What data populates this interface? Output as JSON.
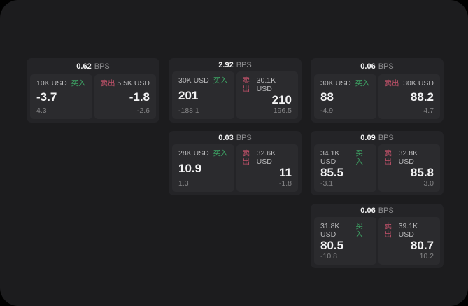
{
  "labels": {
    "bps_unit": "BPS",
    "buy": "买入",
    "sell": "卖出"
  },
  "colors": {
    "outer_background": "#000000",
    "app_background": "#1c1c1e",
    "card_background": "#242427",
    "panel_background": "#2b2b2e",
    "buy_accent": "#3da264",
    "sell_accent": "#c2526a",
    "value_text": "#f4f4f5",
    "muted_text": "#848486"
  },
  "cards": [
    {
      "row": 1,
      "col": 1,
      "bps": "0.62",
      "buy": {
        "size": "10K USD",
        "price": "-3.7",
        "delta": "4.3"
      },
      "sell": {
        "size": "5.5K USD",
        "price": "-1.8",
        "delta": "-2.6"
      }
    },
    {
      "row": 1,
      "col": 2,
      "bps": "2.92",
      "buy": {
        "size": "30K USD",
        "price": "201",
        "delta": "-188.1"
      },
      "sell": {
        "size": "30.1K USD",
        "price": "210",
        "delta": "196.5"
      }
    },
    {
      "row": 1,
      "col": 3,
      "bps": "0.06",
      "buy": {
        "size": "30K USD",
        "price": "88",
        "delta": "-4.9"
      },
      "sell": {
        "size": "30K USD",
        "price": "88.2",
        "delta": "4.7"
      }
    },
    {
      "row": 2,
      "col": 2,
      "bps": "0.03",
      "buy": {
        "size": "28K USD",
        "price": "10.9",
        "delta": "1.3"
      },
      "sell": {
        "size": "32.6K USD",
        "price": "11",
        "delta": "-1.8"
      }
    },
    {
      "row": 2,
      "col": 3,
      "bps": "0.09",
      "buy": {
        "size": "34.1K USD",
        "price": "85.5",
        "delta": "-3.1"
      },
      "sell": {
        "size": "32.8K USD",
        "price": "85.8",
        "delta": "3.0"
      }
    },
    {
      "row": 3,
      "col": 3,
      "bps": "0.06",
      "buy": {
        "size": "31.8K USD",
        "price": "80.5",
        "delta": "-10.8"
      },
      "sell": {
        "size": "39.1K USD",
        "price": "80.7",
        "delta": "10.2"
      }
    }
  ]
}
